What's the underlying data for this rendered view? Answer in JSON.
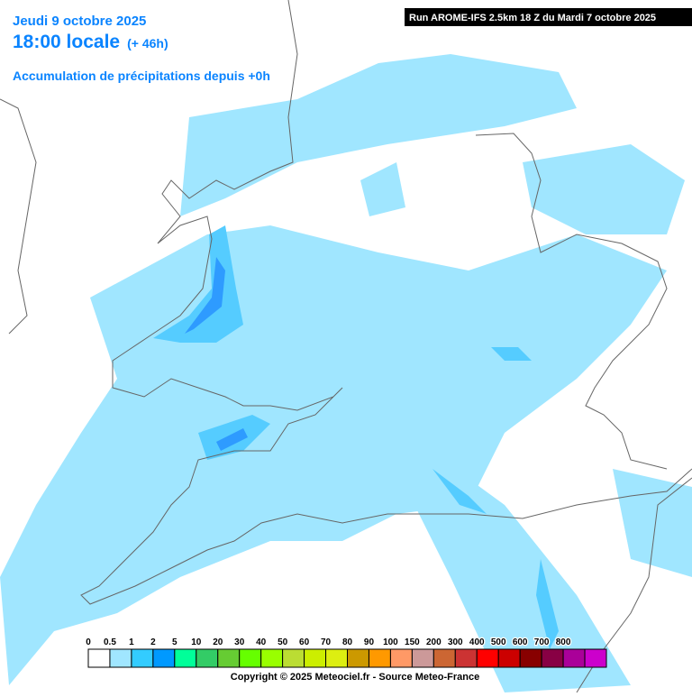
{
  "header": {
    "date": "Jeudi 9 octobre 2025",
    "time": "18:00 locale",
    "lead": "(+ 46h)",
    "product": "Accumulation de précipitations depuis +0h"
  },
  "run": "Run AROME-IFS 2.5km 18 Z du Mardi 7 octobre 2025",
  "legend": {
    "labels": [
      "0",
      "0.5",
      "1",
      "2",
      "5",
      "10",
      "20",
      "30",
      "40",
      "50",
      "60",
      "70",
      "80",
      "90",
      "100",
      "150",
      "200",
      "300",
      "400",
      "500",
      "600",
      "700",
      "800"
    ],
    "colors": [
      "#ffffff",
      "#a0e6ff",
      "#33ccff",
      "#0099ff",
      "#00ff99",
      "#33cc66",
      "#66cc33",
      "#66ff00",
      "#99ff00",
      "#bbdd33",
      "#ccee00",
      "#ddee11",
      "#cc9900",
      "#ff9900",
      "#ff9966",
      "#cc9999",
      "#cc6633",
      "#cc3333",
      "#ff0000",
      "#cc0000",
      "#880000",
      "#880044",
      "#aa0099",
      "#cc00cc"
    ]
  },
  "credit": "Copyright © 2025 Meteociel.fr - Source Meteo-France"
}
